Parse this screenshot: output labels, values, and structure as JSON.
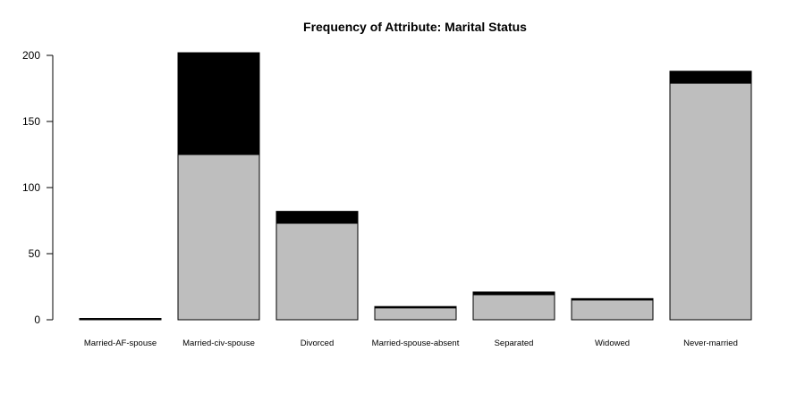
{
  "chart_data": {
    "type": "bar",
    "stacked": true,
    "title": "Frequency of Attribute: Marital Status",
    "xlabel": "",
    "ylabel": "",
    "categories": [
      "Married-AF-spouse",
      "Married-civ-spouse",
      "Divorced",
      "Married-spouse-absent",
      "Separated",
      "Widowed",
      "Never-married"
    ],
    "series": [
      {
        "values": [
          0,
          125,
          73,
          9,
          19,
          15,
          179
        ],
        "color": "#bebebe"
      },
      {
        "values": [
          1,
          77,
          9,
          1,
          2,
          1,
          9
        ],
        "color": "#000000"
      }
    ],
    "ylim": [
      0,
      200
    ],
    "yticks": [
      0,
      50,
      100,
      150,
      200
    ],
    "grid": false,
    "legend": "none"
  }
}
